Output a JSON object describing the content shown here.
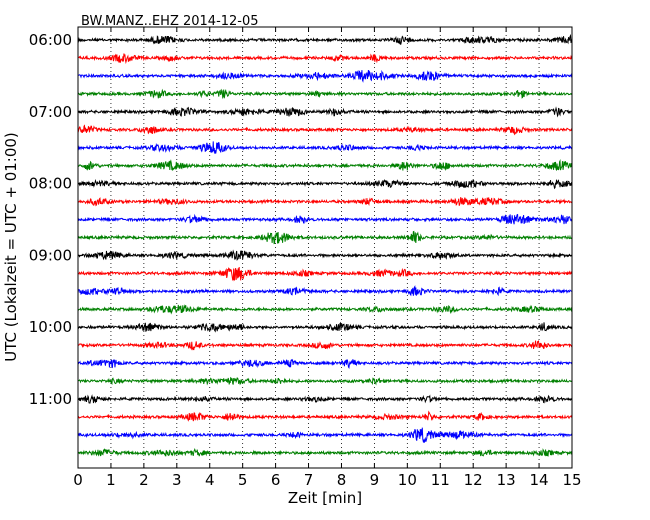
{
  "chart_data": {
    "type": "line",
    "title": "BW.MANZ..EHZ 2014-12-05",
    "xlabel": "Zeit  [min]",
    "ylabel": "UTC (Lokalzeit = UTC + 01:00)",
    "xlim": [
      0,
      15
    ],
    "x_ticks": [
      0,
      1,
      2,
      3,
      4,
      5,
      6,
      7,
      8,
      9,
      10,
      11,
      12,
      13,
      14,
      15
    ],
    "x_tick_labels": [
      "0",
      "1",
      "2",
      "3",
      "4",
      "5",
      "6",
      "7",
      "8",
      "9",
      "10",
      "11",
      "12",
      "13",
      "14",
      "15"
    ],
    "y_tick_labels": [
      "06:00",
      "07:00",
      "08:00",
      "09:00",
      "10:00",
      "11:00"
    ],
    "trace_interval_min": 15,
    "traces_per_hour": 4,
    "trace_start_times": [
      "06:00",
      "06:15",
      "06:30",
      "06:45",
      "07:00",
      "07:15",
      "07:30",
      "07:45",
      "08:00",
      "08:15",
      "08:30",
      "08:45",
      "09:00",
      "09:15",
      "09:30",
      "09:45",
      "10:00",
      "10:15",
      "10:30",
      "10:45",
      "11:00",
      "11:15",
      "11:30",
      "11:45"
    ],
    "trace_colors": [
      "#000000",
      "#ff0000",
      "#0000ff",
      "#008000"
    ],
    "grid": "vertical dotted",
    "legend": "none"
  }
}
